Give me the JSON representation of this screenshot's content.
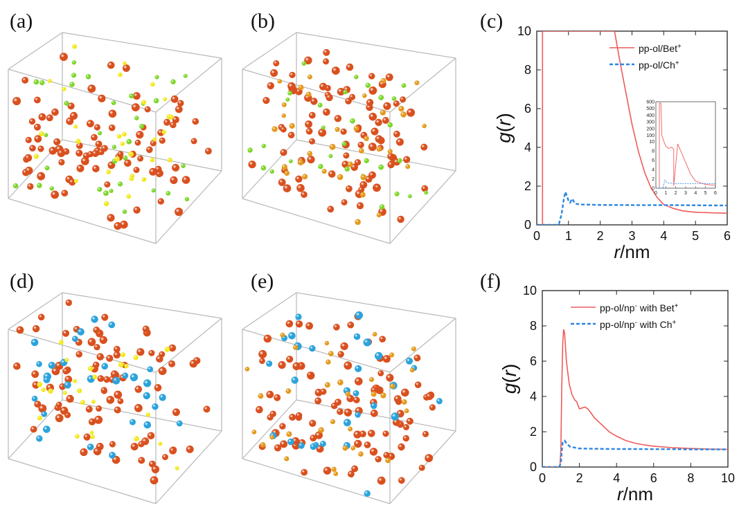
{
  "panels": {
    "a": "(a)",
    "b": "(b)",
    "c": "(c)",
    "d": "(d)",
    "e": "(e)",
    "f": "(f)"
  },
  "colors": {
    "red": "#d9501e",
    "orange": "#e39a1e",
    "green": "#7ed62b",
    "yellow": "#f2e81e",
    "blue": "#2ba3dc",
    "solid_line": "#ee5a5a",
    "dash_line": "#2b85e0"
  },
  "cubes": [
    {
      "id": "a",
      "species": [
        "red",
        "green",
        "yellow"
      ],
      "counts": [
        95,
        35,
        30
      ]
    },
    {
      "id": "b",
      "species": [
        "red",
        "green",
        "orange"
      ],
      "counts": [
        95,
        30,
        35
      ]
    },
    {
      "id": "d",
      "species": [
        "red",
        "blue",
        "yellow"
      ],
      "counts": [
        90,
        30,
        25
      ]
    },
    {
      "id": "e",
      "species": [
        "red",
        "blue",
        "orange"
      ],
      "counts": [
        95,
        30,
        35
      ]
    }
  ],
  "chart_data": [
    {
      "id": "c",
      "type": "line",
      "xlabel_r": "r",
      "xlabel_unit": "/nm",
      "ylabel_g": "g",
      "ylabel_r": "r",
      "xlim": [
        0,
        6
      ],
      "ylim": [
        0,
        10
      ],
      "xticks": [
        "0",
        "1",
        "2",
        "3",
        "4",
        "5",
        "6"
      ],
      "yticks": [
        "0",
        "2",
        "4",
        "6",
        "8",
        "10"
      ],
      "legend_pos": "top-right",
      "series": [
        {
          "name": "pp-ol/Bet",
          "sup": "+",
          "style": "solid",
          "x": [
            0.18,
            0.18,
            2.45,
            2.6,
            2.8,
            3.0,
            3.2,
            3.4,
            3.6,
            3.8,
            4.0,
            4.3,
            4.6,
            5.0,
            5.5,
            6.0
          ],
          "y": [
            0,
            10,
            10,
            8.6,
            6.9,
            5.2,
            3.8,
            2.7,
            1.9,
            1.4,
            1.05,
            0.85,
            0.72,
            0.65,
            0.62,
            0.6
          ]
        },
        {
          "name": "pp-ol/Ch",
          "sup": "+",
          "style": "dashed",
          "x": [
            0,
            0.6,
            0.7,
            0.78,
            0.85,
            0.9,
            0.95,
            1.0,
            1.05,
            1.12,
            1.2,
            1.4,
            2.0,
            3.0,
            4.0,
            5.0,
            6.0
          ],
          "y": [
            0,
            0,
            0.05,
            0.55,
            1.3,
            1.7,
            1.5,
            1.25,
            1.15,
            1.35,
            1.1,
            1.05,
            1.03,
            1.02,
            1.02,
            1.01,
            1.0
          ]
        }
      ],
      "inset": {
        "xlim": [
          0,
          6
        ],
        "xticks": [
          "0",
          "1",
          "2",
          "3",
          "4",
          "5",
          "6"
        ],
        "yticks_upper": [
          "100",
          "200",
          "300",
          "400",
          "500",
          "600"
        ],
        "yticks_lower": [
          "0",
          "2",
          "4",
          "6",
          "8",
          "10"
        ],
        "series_solid": {
          "x": [
            0.35,
            0.35,
            0.5,
            0.6,
            0.8,
            1.0,
            1.3,
            1.6,
            1.8,
            1.8,
            2.2,
            2.5,
            3.0,
            3.5,
            4.0,
            5.0,
            6.0
          ],
          "y": [
            0,
            580,
            580,
            100,
            11,
            9,
            8.5,
            8.8,
            8.3,
            0.5,
            9.5,
            8,
            5.5,
            3,
            1.5,
            0.8,
            0.6
          ]
        },
        "series_dash": {
          "x": [
            0,
            0.7,
            0.9,
            1.2,
            2,
            3,
            4,
            5,
            6
          ],
          "y": [
            0,
            0,
            1.7,
            1.1,
            1.0,
            1.0,
            1.0,
            1.0,
            1.0
          ]
        }
      }
    },
    {
      "id": "f",
      "type": "line",
      "xlabel_r": "r",
      "xlabel_unit": "/nm",
      "ylabel_g": "g",
      "ylabel_r": "r",
      "xlim": [
        0,
        10
      ],
      "ylim": [
        0,
        10
      ],
      "xticks": [
        "0",
        "2",
        "4",
        "6",
        "8",
        "10"
      ],
      "yticks": [
        "0",
        "2",
        "4",
        "6",
        "8",
        "10"
      ],
      "legend_pos": "top-right",
      "series": [
        {
          "name": "pp-ol/np",
          "sup1": "-",
          "mid": " with Bet",
          "sup": "+",
          "style": "solid",
          "x": [
            0,
            0.9,
            0.95,
            1.0,
            1.05,
            1.1,
            1.15,
            1.2,
            1.3,
            1.45,
            1.6,
            1.75,
            1.85,
            2.0,
            2.15,
            2.3,
            2.45,
            2.6,
            2.8,
            3.2,
            3.6,
            4.0,
            4.5,
            5.0,
            5.5,
            6.0,
            7.0,
            8.0,
            9.0,
            10.0
          ],
          "y": [
            0,
            0,
            0.05,
            1.0,
            4.5,
            7.0,
            7.8,
            7.6,
            6.0,
            4.7,
            4.1,
            3.8,
            3.7,
            3.3,
            3.35,
            3.4,
            3.3,
            3.1,
            2.8,
            2.4,
            2.0,
            1.75,
            1.5,
            1.35,
            1.25,
            1.18,
            1.1,
            1.05,
            1.02,
            1.0
          ]
        },
        {
          "name": "pp-ol/np",
          "sup1": "-",
          "mid": " with Ch",
          "sup": "+",
          "style": "dashed",
          "x": [
            0,
            0.9,
            1.0,
            1.05,
            1.1,
            1.2,
            1.3,
            1.5,
            2,
            3,
            4,
            5,
            6,
            7,
            8,
            9,
            10
          ],
          "y": [
            0,
            0,
            0.2,
            0.9,
            1.4,
            1.5,
            1.35,
            1.15,
            1.05,
            1.03,
            1.02,
            1.02,
            1.01,
            1.01,
            1.0,
            1.0,
            1.0
          ]
        }
      ]
    }
  ]
}
